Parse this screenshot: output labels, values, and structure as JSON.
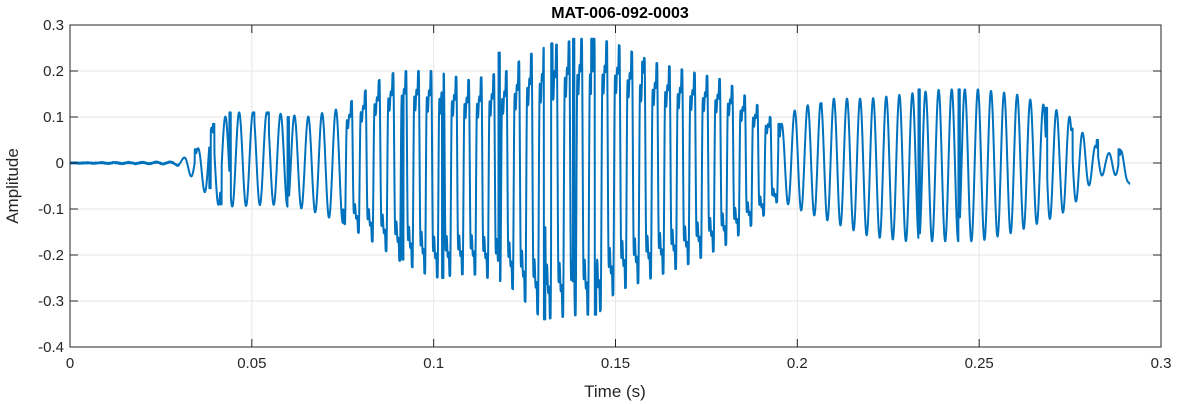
{
  "chart_data": {
    "type": "line",
    "title": "MAT-006-092-0003",
    "xlabel": "Time (s)",
    "ylabel": "Amplitude",
    "xlim": [
      0,
      0.3
    ],
    "ylim": [
      -0.4,
      0.3
    ],
    "xticks": [
      0,
      0.05,
      0.1,
      0.15,
      0.2,
      0.25,
      0.3
    ],
    "xtick_labels": [
      "0",
      "0.05",
      "0.1",
      "0.15",
      "0.2",
      "0.25",
      "0.3"
    ],
    "yticks": [
      -0.4,
      -0.3,
      -0.2,
      -0.1,
      0,
      0.1,
      0.2,
      0.3
    ],
    "ytick_labels": [
      "-0.4",
      "-0.3",
      "-0.2",
      "-0.1",
      "0",
      "0.1",
      "0.2",
      "0.3"
    ],
    "grid": true,
    "line_color": "#0072BD",
    "series": [
      {
        "signal_end": 0.2915,
        "envelope": [
          {
            "t": 0.0,
            "upper": 0.0,
            "lower": 0.0
          },
          {
            "t": 0.028,
            "upper": 0.002,
            "lower": -0.002
          },
          {
            "t": 0.031,
            "upper": 0.01,
            "lower": -0.008
          },
          {
            "t": 0.035,
            "upper": 0.03,
            "lower": -0.045
          },
          {
            "t": 0.04,
            "upper": 0.09,
            "lower": -0.09
          },
          {
            "t": 0.045,
            "upper": 0.11,
            "lower": -0.095
          },
          {
            "t": 0.055,
            "upper": 0.11,
            "lower": -0.09
          },
          {
            "t": 0.065,
            "upper": 0.1,
            "lower": -0.1
          },
          {
            "t": 0.075,
            "upper": 0.12,
            "lower": -0.13
          },
          {
            "t": 0.085,
            "upper": 0.18,
            "lower": -0.18
          },
          {
            "t": 0.09,
            "upper": 0.2,
            "lower": -0.21
          },
          {
            "t": 0.1,
            "upper": 0.2,
            "lower": -0.25
          },
          {
            "t": 0.11,
            "upper": 0.18,
            "lower": -0.24
          },
          {
            "t": 0.12,
            "upper": 0.2,
            "lower": -0.26
          },
          {
            "t": 0.125,
            "upper": 0.23,
            "lower": -0.3
          },
          {
            "t": 0.13,
            "upper": 0.25,
            "lower": -0.34
          },
          {
            "t": 0.14,
            "upper": 0.27,
            "lower": -0.33
          },
          {
            "t": 0.145,
            "upper": 0.27,
            "lower": -0.33
          },
          {
            "t": 0.15,
            "upper": 0.26,
            "lower": -0.28
          },
          {
            "t": 0.16,
            "upper": 0.22,
            "lower": -0.25
          },
          {
            "t": 0.17,
            "upper": 0.2,
            "lower": -0.22
          },
          {
            "t": 0.18,
            "upper": 0.18,
            "lower": -0.18
          },
          {
            "t": 0.19,
            "upper": 0.12,
            "lower": -0.12
          },
          {
            "t": 0.195,
            "upper": 0.08,
            "lower": -0.08
          },
          {
            "t": 0.2,
            "upper": 0.12,
            "lower": -0.1
          },
          {
            "t": 0.21,
            "upper": 0.14,
            "lower": -0.13
          },
          {
            "t": 0.22,
            "upper": 0.14,
            "lower": -0.16
          },
          {
            "t": 0.23,
            "upper": 0.15,
            "lower": -0.17
          },
          {
            "t": 0.24,
            "upper": 0.16,
            "lower": -0.17
          },
          {
            "t": 0.25,
            "upper": 0.16,
            "lower": -0.17
          },
          {
            "t": 0.26,
            "upper": 0.15,
            "lower": -0.15
          },
          {
            "t": 0.27,
            "upper": 0.12,
            "lower": -0.12
          },
          {
            "t": 0.275,
            "upper": 0.1,
            "lower": -0.1
          },
          {
            "t": 0.28,
            "upper": 0.05,
            "lower": -0.05
          },
          {
            "t": 0.285,
            "upper": 0.02,
            "lower": -0.02
          },
          {
            "t": 0.289,
            "upper": 0.03,
            "lower": -0.03
          },
          {
            "t": 0.2915,
            "upper": -0.04,
            "lower": -0.045
          }
        ],
        "peaks": [
          {
            "t": 0.0345,
            "v": 0.03
          },
          {
            "t": 0.0385,
            "v": -0.055
          },
          {
            "t": 0.0395,
            "v": 0.085
          },
          {
            "t": 0.0415,
            "v": -0.09
          },
          {
            "t": 0.044,
            "v": 0.11
          },
          {
            "t": 0.0505,
            "v": 0.11
          },
          {
            "t": 0.0545,
            "v": 0.11
          },
          {
            "t": 0.06,
            "v": 0.1
          },
          {
            "t": 0.0915,
            "v": -0.21
          },
          {
            "t": 0.1025,
            "v": -0.25
          },
          {
            "t": 0.118,
            "v": 0.24
          },
          {
            "t": 0.1305,
            "v": -0.34
          },
          {
            "t": 0.1325,
            "v": 0.26
          },
          {
            "t": 0.1385,
            "v": 0.27
          },
          {
            "t": 0.1435,
            "v": 0.27
          },
          {
            "t": 0.1445,
            "v": -0.33
          },
          {
            "t": 0.1575,
            "v": 0.22
          },
          {
            "t": 0.195,
            "v": 0.085
          },
          {
            "t": 0.2065,
            "v": 0.13
          },
          {
            "t": 0.2335,
            "v": 0.16
          },
          {
            "t": 0.2445,
            "v": 0.16
          },
          {
            "t": 0.2685,
            "v": 0.12
          },
          {
            "t": 0.2755,
            "v": 0.075
          },
          {
            "t": 0.2825,
            "v": 0.05
          },
          {
            "t": 0.2885,
            "v": 0.03
          },
          {
            "t": 0.2915,
            "v": -0.045
          }
        ]
      }
    ]
  }
}
